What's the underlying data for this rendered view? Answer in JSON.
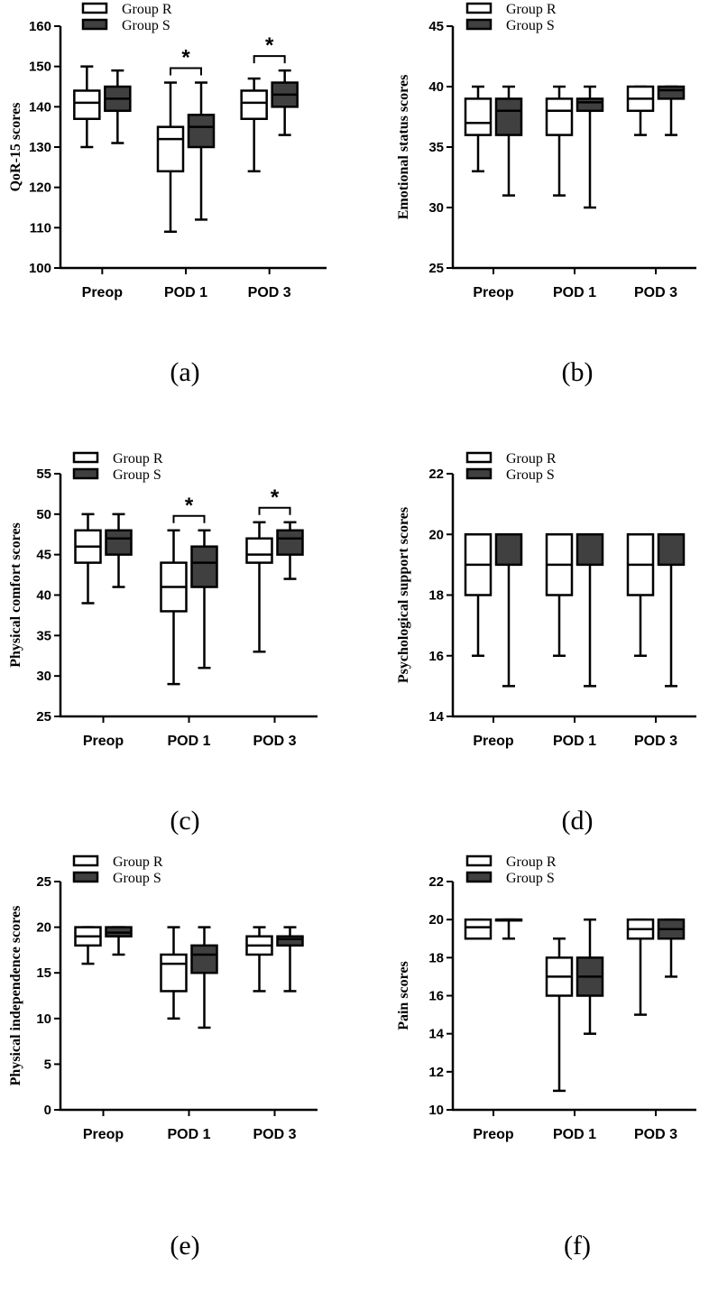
{
  "figure": {
    "legend": {
      "group_r": "Group R",
      "group_s": "Group S"
    },
    "colors": {
      "group_r_fill": "#ffffff",
      "group_s_fill": "#404040",
      "stroke": "#000000"
    }
  },
  "chart_data": [
    {
      "type": "box",
      "panel_label": "(a)",
      "ylabel": "QoR-15 scores",
      "ylim": [
        100,
        160
      ],
      "yticks": [
        100,
        110,
        120,
        130,
        140,
        150,
        160
      ],
      "categories": [
        "Preop",
        "POD 1",
        "POD 3"
      ],
      "legend_placement": "top-left",
      "series": [
        {
          "name": "Group R",
          "boxes": [
            {
              "min": 130,
              "q1": 137,
              "median": 141,
              "q3": 144,
              "max": 150
            },
            {
              "min": 109,
              "q1": 124,
              "median": 132,
              "q3": 135,
              "max": 146
            },
            {
              "min": 124,
              "q1": 137,
              "median": 141,
              "q3": 144,
              "max": 147
            }
          ]
        },
        {
          "name": "Group S",
          "boxes": [
            {
              "min": 131,
              "q1": 139,
              "median": 142,
              "q3": 145,
              "max": 149
            },
            {
              "min": 112,
              "q1": 130,
              "median": 135,
              "q3": 138,
              "max": 146
            },
            {
              "min": 133,
              "q1": 140,
              "median": 143,
              "q3": 146,
              "max": 149
            }
          ]
        }
      ],
      "significance": [
        {
          "category": "POD 1",
          "symbol": "*"
        },
        {
          "category": "POD 3",
          "symbol": "*"
        }
      ]
    },
    {
      "type": "box",
      "panel_label": "(b)",
      "ylabel": "Emotional status scores",
      "ylim": [
        25,
        45
      ],
      "yticks": [
        25,
        30,
        35,
        40,
        45
      ],
      "categories": [
        "Preop",
        "POD 1",
        "POD 3"
      ],
      "legend_placement": "top-left",
      "series": [
        {
          "name": "Group R",
          "boxes": [
            {
              "min": 33,
              "q1": 36,
              "median": 37,
              "q3": 39,
              "max": 40
            },
            {
              "min": 31,
              "q1": 36,
              "median": 38,
              "q3": 39,
              "max": 40
            },
            {
              "min": 36,
              "q1": 38,
              "median": 39,
              "q3": 40,
              "max": 40
            }
          ]
        },
        {
          "name": "Group S",
          "boxes": [
            {
              "min": 31,
              "q1": 36,
              "median": 38,
              "q3": 39,
              "max": 40
            },
            {
              "min": 30,
              "q1": 38,
              "median": 38.7,
              "q3": 39,
              "max": 40
            },
            {
              "min": 36,
              "q1": 39,
              "median": 39.7,
              "q3": 40,
              "max": 40
            }
          ]
        }
      ],
      "significance": []
    },
    {
      "type": "box",
      "panel_label": "(c)",
      "ylabel": "Physical comfort scores",
      "ylim": [
        25,
        55
      ],
      "yticks": [
        25,
        30,
        35,
        40,
        45,
        50,
        55
      ],
      "categories": [
        "Preop",
        "POD 1",
        "POD 3"
      ],
      "legend_placement": "top-right",
      "series": [
        {
          "name": "Group R",
          "boxes": [
            {
              "min": 39,
              "q1": 44,
              "median": 46,
              "q3": 48,
              "max": 50
            },
            {
              "min": 29,
              "q1": 38,
              "median": 41,
              "q3": 44,
              "max": 48
            },
            {
              "min": 33,
              "q1": 44,
              "median": 45,
              "q3": 47,
              "max": 49
            }
          ]
        },
        {
          "name": "Group S",
          "boxes": [
            {
              "min": 41,
              "q1": 45,
              "median": 47,
              "q3": 48,
              "max": 50
            },
            {
              "min": 31,
              "q1": 41,
              "median": 44,
              "q3": 46,
              "max": 48
            },
            {
              "min": 42,
              "q1": 45,
              "median": 47,
              "q3": 48,
              "max": 49
            }
          ]
        }
      ],
      "significance": [
        {
          "category": "POD 1",
          "symbol": "*"
        },
        {
          "category": "POD 3",
          "symbol": "*"
        }
      ]
    },
    {
      "type": "box",
      "panel_label": "(d)",
      "ylabel": "Psychological support scores",
      "ylim": [
        14,
        22
      ],
      "yticks": [
        14,
        16,
        18,
        20,
        22
      ],
      "categories": [
        "Preop",
        "POD 1",
        "POD 3"
      ],
      "legend_placement": "top-left",
      "series": [
        {
          "name": "Group R",
          "boxes": [
            {
              "min": 16,
              "q1": 18,
              "median": 19,
              "q3": 20,
              "max": 20
            },
            {
              "min": 16,
              "q1": 18,
              "median": 19,
              "q3": 20,
              "max": 20
            },
            {
              "min": 16,
              "q1": 18,
              "median": 19,
              "q3": 20,
              "max": 20
            }
          ]
        },
        {
          "name": "Group S",
          "boxes": [
            {
              "min": 15,
              "q1": 19,
              "median": 20,
              "q3": 20,
              "max": 20
            },
            {
              "min": 15,
              "q1": 19,
              "median": 20,
              "q3": 20,
              "max": 20
            },
            {
              "min": 15,
              "q1": 19,
              "median": 20,
              "q3": 20,
              "max": 20
            }
          ]
        }
      ],
      "significance": []
    },
    {
      "type": "box",
      "panel_label": "(e)",
      "ylabel": "Physical independence scores",
      "ylim": [
        0,
        25
      ],
      "yticks": [
        0,
        5,
        10,
        15,
        20,
        25
      ],
      "categories": [
        "Preop",
        "POD 1",
        "POD 3"
      ],
      "legend_placement": "top-right",
      "series": [
        {
          "name": "Group R",
          "boxes": [
            {
              "min": 16,
              "q1": 18,
              "median": 19,
              "q3": 20,
              "max": 20
            },
            {
              "min": 10,
              "q1": 13,
              "median": 16,
              "q3": 17,
              "max": 20
            },
            {
              "min": 13,
              "q1": 17,
              "median": 18,
              "q3": 19,
              "max": 20
            }
          ]
        },
        {
          "name": "Group S",
          "boxes": [
            {
              "min": 17,
              "q1": 19,
              "median": 19.4,
              "q3": 20,
              "max": 20
            },
            {
              "min": 9,
              "q1": 15,
              "median": 17,
              "q3": 18,
              "max": 20
            },
            {
              "min": 13,
              "q1": 18,
              "median": 18.7,
              "q3": 19,
              "max": 20
            }
          ]
        }
      ],
      "significance": []
    },
    {
      "type": "box",
      "panel_label": "(f)",
      "ylabel": "Pain scores",
      "ylim": [
        10,
        22
      ],
      "yticks": [
        10,
        12,
        14,
        16,
        18,
        20,
        22
      ],
      "categories": [
        "Preop",
        "POD 1",
        "POD 3"
      ],
      "legend_placement": "top-left",
      "series": [
        {
          "name": "Group R",
          "boxes": [
            {
              "min": 19,
              "q1": 19,
              "median": 19.6,
              "q3": 20,
              "max": 20
            },
            {
              "min": 11,
              "q1": 16,
              "median": 17,
              "q3": 18,
              "max": 19
            },
            {
              "min": 15,
              "q1": 19,
              "median": 19.5,
              "q3": 20,
              "max": 20
            }
          ]
        },
        {
          "name": "Group S",
          "boxes": [
            {
              "min": 19,
              "q1": 20,
              "median": 20,
              "q3": 20,
              "max": 20
            },
            {
              "min": 14,
              "q1": 16,
              "median": 17,
              "q3": 18,
              "max": 20
            },
            {
              "min": 17,
              "q1": 19,
              "median": 19.5,
              "q3": 20,
              "max": 20
            }
          ]
        }
      ],
      "significance": []
    }
  ]
}
